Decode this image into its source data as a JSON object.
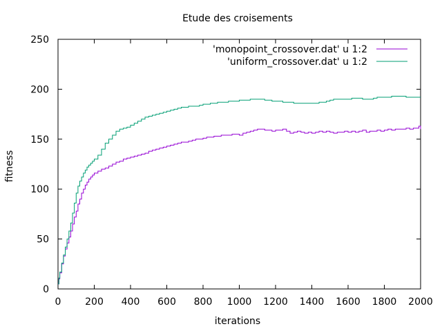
{
  "chart_data": {
    "type": "line",
    "title": "Etude des croisements",
    "xlabel": "iterations",
    "ylabel": "fitness",
    "xlim": [
      0,
      2000
    ],
    "ylim": [
      0,
      250
    ],
    "xticks": [
      0,
      200,
      400,
      600,
      800,
      1000,
      1200,
      1400,
      1600,
      1800,
      2000
    ],
    "yticks": [
      0,
      50,
      100,
      150,
      200,
      250
    ],
    "grid": false,
    "legend_position": "top-right",
    "series": [
      {
        "name": "'monopoint_crossover.dat' u 1:2",
        "color": "#9400d3",
        "step": true,
        "x": [
          0,
          5,
          10,
          20,
          30,
          40,
          50,
          60,
          70,
          80,
          90,
          100,
          110,
          120,
          130,
          140,
          150,
          160,
          170,
          180,
          190,
          200,
          220,
          240,
          260,
          280,
          300,
          320,
          340,
          360,
          380,
          400,
          420,
          440,
          460,
          480,
          500,
          520,
          540,
          560,
          580,
          600,
          620,
          640,
          660,
          680,
          700,
          720,
          740,
          760,
          780,
          800,
          820,
          840,
          860,
          880,
          900,
          920,
          940,
          960,
          980,
          1000,
          1020,
          1040,
          1060,
          1080,
          1100,
          1120,
          1140,
          1160,
          1180,
          1200,
          1220,
          1240,
          1260,
          1280,
          1300,
          1320,
          1340,
          1360,
          1380,
          1400,
          1420,
          1440,
          1460,
          1480,
          1500,
          1520,
          1540,
          1560,
          1580,
          1600,
          1620,
          1640,
          1660,
          1680,
          1700,
          1720,
          1740,
          1760,
          1780,
          1800,
          1820,
          1840,
          1860,
          1880,
          1900,
          1920,
          1940,
          1960,
          1980,
          1990,
          2000
        ],
        "y": [
          5,
          10,
          16,
          25,
          33,
          40,
          46,
          52,
          58,
          65,
          72,
          78,
          85,
          90,
          96,
          100,
          104,
          107,
          110,
          112,
          114,
          116,
          118,
          120,
          121,
          123,
          125,
          127,
          128,
          130,
          131,
          132,
          133,
          134,
          135,
          136,
          138,
          139,
          140,
          141,
          142,
          143,
          144,
          145,
          146,
          147,
          147,
          148,
          149,
          150,
          150,
          151,
          152,
          152,
          153,
          153,
          154,
          154,
          154,
          155,
          155,
          154,
          156,
          157,
          158,
          159,
          160,
          160,
          159,
          159,
          158,
          159,
          159,
          160,
          158,
          156,
          157,
          158,
          157,
          156,
          157,
          156,
          157,
          158,
          157,
          158,
          157,
          156,
          157,
          157,
          158,
          157,
          158,
          157,
          158,
          159,
          157,
          158,
          158,
          159,
          158,
          159,
          160,
          159,
          160,
          160,
          160,
          161,
          160,
          161,
          161,
          163,
          160
        ]
      },
      {
        "name": "'uniform_crossover.dat' u 1:2",
        "color": "#009e73",
        "step": true,
        "x": [
          0,
          5,
          10,
          20,
          30,
          40,
          50,
          60,
          70,
          80,
          90,
          100,
          110,
          120,
          130,
          140,
          150,
          160,
          170,
          180,
          190,
          200,
          220,
          240,
          260,
          280,
          300,
          320,
          340,
          360,
          380,
          400,
          420,
          440,
          460,
          480,
          500,
          520,
          540,
          560,
          580,
          600,
          620,
          640,
          660,
          680,
          700,
          720,
          740,
          760,
          780,
          800,
          820,
          840,
          860,
          880,
          900,
          920,
          940,
          960,
          980,
          1000,
          1020,
          1040,
          1060,
          1080,
          1100,
          1120,
          1140,
          1160,
          1180,
          1200,
          1220,
          1240,
          1260,
          1280,
          1300,
          1320,
          1340,
          1360,
          1380,
          1400,
          1420,
          1440,
          1460,
          1480,
          1500,
          1520,
          1540,
          1560,
          1580,
          1600,
          1620,
          1640,
          1660,
          1680,
          1700,
          1720,
          1740,
          1760,
          1780,
          1800,
          1820,
          1840,
          1860,
          1880,
          1900,
          1920,
          1940,
          1960,
          1980,
          1990,
          2000
        ],
        "y": [
          5,
          11,
          17,
          26,
          34,
          42,
          50,
          58,
          66,
          76,
          86,
          96,
          103,
          108,
          112,
          116,
          119,
          122,
          124,
          126,
          128,
          130,
          134,
          140,
          146,
          150,
          154,
          158,
          160,
          161,
          162,
          164,
          166,
          168,
          170,
          172,
          173,
          174,
          175,
          176,
          177,
          178,
          179,
          180,
          181,
          182,
          182,
          183,
          183,
          183,
          184,
          185,
          185,
          186,
          186,
          187,
          187,
          187,
          188,
          188,
          188,
          189,
          189,
          189,
          190,
          190,
          190,
          190,
          189,
          189,
          188,
          188,
          188,
          187,
          187,
          187,
          186,
          186,
          186,
          186,
          186,
          186,
          186,
          187,
          187,
          188,
          189,
          190,
          190,
          190,
          190,
          190,
          191,
          191,
          191,
          190,
          190,
          190,
          191,
          192,
          192,
          192,
          192,
          193,
          193,
          193,
          193,
          192,
          192,
          192,
          192,
          192,
          192
        ]
      }
    ]
  }
}
